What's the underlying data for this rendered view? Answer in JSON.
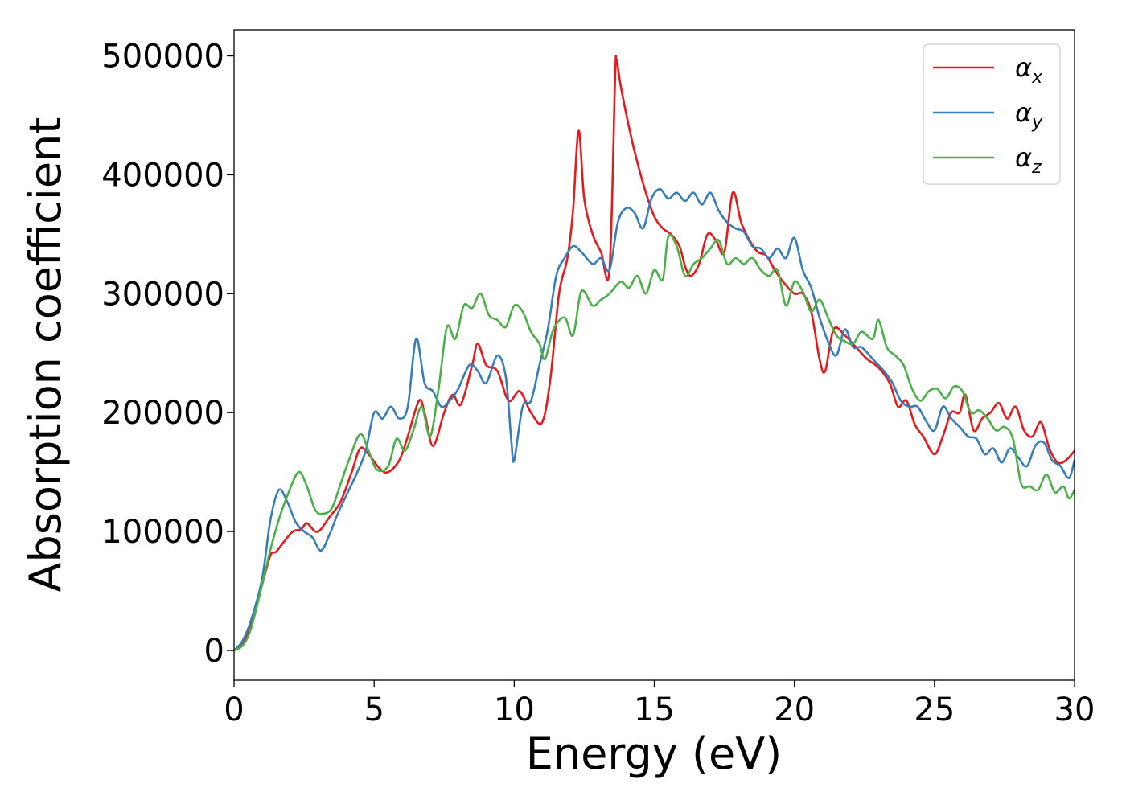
{
  "chart_data": {
    "type": "line",
    "xlabel": "Energy (eV)",
    "ylabel": "Absorption coefficient",
    "xlim": [
      0,
      30
    ],
    "ylim": [
      -25000,
      522000
    ],
    "xticks": [
      0,
      5,
      10,
      15,
      20,
      25,
      30
    ],
    "xtick_labels": [
      "0",
      "5",
      "10",
      "15",
      "20",
      "25",
      "30"
    ],
    "yticks": [
      0,
      100000,
      200000,
      300000,
      400000,
      500000
    ],
    "ytick_labels": [
      "0",
      "100000",
      "200000",
      "300000",
      "400000",
      "500000"
    ],
    "grid": false,
    "legend_position": "top-right",
    "series": [
      {
        "name": "α",
        "subscript": "x",
        "color": "#e41a1c",
        "points": [
          [
            0,
            0
          ],
          [
            0.3,
            5000
          ],
          [
            0.6,
            22000
          ],
          [
            1,
            55000
          ],
          [
            1.3,
            80000
          ],
          [
            1.5,
            83000
          ],
          [
            1.8,
            92000
          ],
          [
            2.1,
            100000
          ],
          [
            2.4,
            102000
          ],
          [
            2.6,
            107000
          ],
          [
            2.9,
            100000
          ],
          [
            3.1,
            102000
          ],
          [
            3.4,
            112000
          ],
          [
            3.8,
            125000
          ],
          [
            4.2,
            150000
          ],
          [
            4.5,
            170000
          ],
          [
            4.8,
            165000
          ],
          [
            5.2,
            153000
          ],
          [
            5.5,
            150000
          ],
          [
            5.9,
            160000
          ],
          [
            6.2,
            180000
          ],
          [
            6.6,
            210000
          ],
          [
            6.8,
            200000
          ],
          [
            7.1,
            172000
          ],
          [
            7.5,
            200000
          ],
          [
            7.8,
            215000
          ],
          [
            8.1,
            207000
          ],
          [
            8.5,
            240000
          ],
          [
            8.7,
            258000
          ],
          [
            9.0,
            240000
          ],
          [
            9.4,
            235000
          ],
          [
            9.8,
            210000
          ],
          [
            10.2,
            218000
          ],
          [
            10.6,
            200000
          ],
          [
            11,
            192000
          ],
          [
            11.3,
            230000
          ],
          [
            11.6,
            300000
          ],
          [
            11.9,
            330000
          ],
          [
            12.1,
            370000
          ],
          [
            12.3,
            437000
          ],
          [
            12.5,
            380000
          ],
          [
            12.8,
            350000
          ],
          [
            13.1,
            335000
          ],
          [
            13.4,
            320000
          ],
          [
            13.6,
            480000
          ],
          [
            13.65,
            497000
          ],
          [
            13.8,
            475000
          ],
          [
            14.1,
            440000
          ],
          [
            14.4,
            410000
          ],
          [
            14.7,
            385000
          ],
          [
            15.0,
            365000
          ],
          [
            15.3,
            355000
          ],
          [
            15.6,
            350000
          ],
          [
            15.9,
            340000
          ],
          [
            16.1,
            323000
          ],
          [
            16.3,
            315000
          ],
          [
            16.6,
            325000
          ],
          [
            16.9,
            350000
          ],
          [
            17.2,
            345000
          ],
          [
            17.5,
            335000
          ],
          [
            17.8,
            385000
          ],
          [
            18.1,
            360000
          ],
          [
            18.4,
            345000
          ],
          [
            18.7,
            335000
          ],
          [
            19.0,
            332000
          ],
          [
            19.3,
            320000
          ],
          [
            19.6,
            310000
          ],
          [
            20.0,
            300000
          ],
          [
            20.3,
            300000
          ],
          [
            20.6,
            285000
          ],
          [
            20.9,
            245000
          ],
          [
            21.1,
            235000
          ],
          [
            21.4,
            270000
          ],
          [
            21.8,
            265000
          ],
          [
            22.2,
            255000
          ],
          [
            22.6,
            245000
          ],
          [
            23.0,
            238000
          ],
          [
            23.4,
            225000
          ],
          [
            23.7,
            205000
          ],
          [
            24.0,
            210000
          ],
          [
            24.3,
            190000
          ],
          [
            24.6,
            180000
          ],
          [
            25.0,
            165000
          ],
          [
            25.3,
            180000
          ],
          [
            25.6,
            200000
          ],
          [
            25.9,
            200000
          ],
          [
            26.1,
            215000
          ],
          [
            26.4,
            185000
          ],
          [
            26.7,
            195000
          ],
          [
            27.0,
            200000
          ],
          [
            27.3,
            208000
          ],
          [
            27.6,
            195000
          ],
          [
            27.9,
            205000
          ],
          [
            28.2,
            185000
          ],
          [
            28.5,
            180000
          ],
          [
            28.8,
            192000
          ],
          [
            29.1,
            170000
          ],
          [
            29.4,
            158000
          ],
          [
            29.7,
            160000
          ],
          [
            30.0,
            168000
          ]
        ]
      },
      {
        "name": "α",
        "subscript": "y",
        "color": "#377eb8",
        "points": [
          [
            0,
            0
          ],
          [
            0.3,
            8000
          ],
          [
            0.6,
            25000
          ],
          [
            1,
            60000
          ],
          [
            1.3,
            110000
          ],
          [
            1.6,
            135000
          ],
          [
            1.9,
            125000
          ],
          [
            2.2,
            108000
          ],
          [
            2.5,
            100000
          ],
          [
            2.8,
            95000
          ],
          [
            3.1,
            84000
          ],
          [
            3.4,
            97000
          ],
          [
            3.7,
            115000
          ],
          [
            4.0,
            130000
          ],
          [
            4.4,
            150000
          ],
          [
            4.7,
            168000
          ],
          [
            5.0,
            200000
          ],
          [
            5.3,
            195000
          ],
          [
            5.6,
            205000
          ],
          [
            5.9,
            195000
          ],
          [
            6.2,
            205000
          ],
          [
            6.5,
            262000
          ],
          [
            6.8,
            225000
          ],
          [
            7.1,
            218000
          ],
          [
            7.4,
            205000
          ],
          [
            7.7,
            210000
          ],
          [
            8.0,
            220000
          ],
          [
            8.4,
            240000
          ],
          [
            8.7,
            235000
          ],
          [
            9.0,
            225000
          ],
          [
            9.4,
            248000
          ],
          [
            9.7,
            230000
          ],
          [
            9.9,
            175000
          ],
          [
            10.0,
            160000
          ],
          [
            10.3,
            205000
          ],
          [
            10.6,
            210000
          ],
          [
            10.9,
            240000
          ],
          [
            11.2,
            270000
          ],
          [
            11.5,
            315000
          ],
          [
            11.8,
            330000
          ],
          [
            12.1,
            340000
          ],
          [
            12.4,
            335000
          ],
          [
            12.8,
            325000
          ],
          [
            13.1,
            330000
          ],
          [
            13.4,
            320000
          ],
          [
            13.7,
            360000
          ],
          [
            14.0,
            372000
          ],
          [
            14.3,
            368000
          ],
          [
            14.6,
            355000
          ],
          [
            14.9,
            380000
          ],
          [
            15.2,
            388000
          ],
          [
            15.5,
            380000
          ],
          [
            15.8,
            385000
          ],
          [
            16.1,
            378000
          ],
          [
            16.4,
            385000
          ],
          [
            16.7,
            375000
          ],
          [
            17.0,
            385000
          ],
          [
            17.3,
            370000
          ],
          [
            17.6,
            360000
          ],
          [
            17.9,
            355000
          ],
          [
            18.2,
            352000
          ],
          [
            18.5,
            340000
          ],
          [
            18.8,
            338000
          ],
          [
            19.1,
            330000
          ],
          [
            19.4,
            338000
          ],
          [
            19.7,
            330000
          ],
          [
            20.0,
            347000
          ],
          [
            20.3,
            320000
          ],
          [
            20.6,
            305000
          ],
          [
            20.9,
            280000
          ],
          [
            21.2,
            260000
          ],
          [
            21.5,
            248000
          ],
          [
            21.8,
            270000
          ],
          [
            22.1,
            255000
          ],
          [
            22.4,
            255000
          ],
          [
            22.8,
            245000
          ],
          [
            23.2,
            235000
          ],
          [
            23.5,
            225000
          ],
          [
            23.8,
            210000
          ],
          [
            24.1,
            205000
          ],
          [
            24.4,
            205000
          ],
          [
            24.7,
            193000
          ],
          [
            25.0,
            185000
          ],
          [
            25.3,
            205000
          ],
          [
            25.6,
            195000
          ],
          [
            25.9,
            188000
          ],
          [
            26.2,
            180000
          ],
          [
            26.5,
            178000
          ],
          [
            26.8,
            165000
          ],
          [
            27.1,
            170000
          ],
          [
            27.4,
            158000
          ],
          [
            27.7,
            170000
          ],
          [
            28.0,
            162000
          ],
          [
            28.3,
            155000
          ],
          [
            28.6,
            172000
          ],
          [
            28.9,
            175000
          ],
          [
            29.2,
            160000
          ],
          [
            29.5,
            155000
          ],
          [
            29.8,
            145000
          ],
          [
            30.0,
            160000
          ]
        ]
      },
      {
        "name": "α",
        "subscript": "z",
        "color": "#4daf4a",
        "points": [
          [
            0,
            0
          ],
          [
            0.3,
            4000
          ],
          [
            0.6,
            18000
          ],
          [
            1,
            55000
          ],
          [
            1.3,
            85000
          ],
          [
            1.6,
            110000
          ],
          [
            1.9,
            130000
          ],
          [
            2.3,
            150000
          ],
          [
            2.6,
            138000
          ],
          [
            2.9,
            118000
          ],
          [
            3.2,
            115000
          ],
          [
            3.5,
            120000
          ],
          [
            3.8,
            140000
          ],
          [
            4.1,
            160000
          ],
          [
            4.5,
            182000
          ],
          [
            4.8,
            168000
          ],
          [
            5.1,
            152000
          ],
          [
            5.5,
            155000
          ],
          [
            5.8,
            178000
          ],
          [
            6.1,
            168000
          ],
          [
            6.4,
            185000
          ],
          [
            6.7,
            205000
          ],
          [
            7.0,
            180000
          ],
          [
            7.3,
            220000
          ],
          [
            7.6,
            272000
          ],
          [
            7.9,
            262000
          ],
          [
            8.2,
            290000
          ],
          [
            8.5,
            288000
          ],
          [
            8.8,
            300000
          ],
          [
            9.1,
            282000
          ],
          [
            9.4,
            278000
          ],
          [
            9.7,
            272000
          ],
          [
            10.0,
            290000
          ],
          [
            10.3,
            285000
          ],
          [
            10.6,
            268000
          ],
          [
            10.9,
            258000
          ],
          [
            11.1,
            245000
          ],
          [
            11.4,
            270000
          ],
          [
            11.8,
            280000
          ],
          [
            12.1,
            265000
          ],
          [
            12.4,
            302000
          ],
          [
            12.8,
            290000
          ],
          [
            13.1,
            295000
          ],
          [
            13.4,
            300000
          ],
          [
            13.8,
            310000
          ],
          [
            14.1,
            305000
          ],
          [
            14.4,
            315000
          ],
          [
            14.7,
            300000
          ],
          [
            15.0,
            320000
          ],
          [
            15.3,
            312000
          ],
          [
            15.5,
            348000
          ],
          [
            15.8,
            340000
          ],
          [
            16.1,
            315000
          ],
          [
            16.4,
            325000
          ],
          [
            16.7,
            330000
          ],
          [
            17.0,
            338000
          ],
          [
            17.3,
            345000
          ],
          [
            17.6,
            325000
          ],
          [
            17.9,
            330000
          ],
          [
            18.2,
            325000
          ],
          [
            18.5,
            330000
          ],
          [
            18.8,
            320000
          ],
          [
            19.1,
            315000
          ],
          [
            19.4,
            320000
          ],
          [
            19.7,
            290000
          ],
          [
            20.0,
            310000
          ],
          [
            20.3,
            302000
          ],
          [
            20.6,
            285000
          ],
          [
            20.9,
            295000
          ],
          [
            21.2,
            280000
          ],
          [
            21.5,
            265000
          ],
          [
            21.8,
            260000
          ],
          [
            22.1,
            258000
          ],
          [
            22.4,
            268000
          ],
          [
            22.8,
            262000
          ],
          [
            23.0,
            278000
          ],
          [
            23.3,
            255000
          ],
          [
            23.6,
            248000
          ],
          [
            23.9,
            240000
          ],
          [
            24.2,
            220000
          ],
          [
            24.5,
            210000
          ],
          [
            24.8,
            218000
          ],
          [
            25.1,
            220000
          ],
          [
            25.4,
            212000
          ],
          [
            25.7,
            222000
          ],
          [
            26.0,
            218000
          ],
          [
            26.3,
            200000
          ],
          [
            26.6,
            202000
          ],
          [
            26.9,
            195000
          ],
          [
            27.2,
            185000
          ],
          [
            27.5,
            188000
          ],
          [
            27.8,
            178000
          ],
          [
            28.1,
            140000
          ],
          [
            28.4,
            138000
          ],
          [
            28.7,
            135000
          ],
          [
            29.0,
            148000
          ],
          [
            29.3,
            133000
          ],
          [
            29.6,
            138000
          ],
          [
            29.8,
            128000
          ],
          [
            30.0,
            135000
          ]
        ]
      }
    ]
  }
}
